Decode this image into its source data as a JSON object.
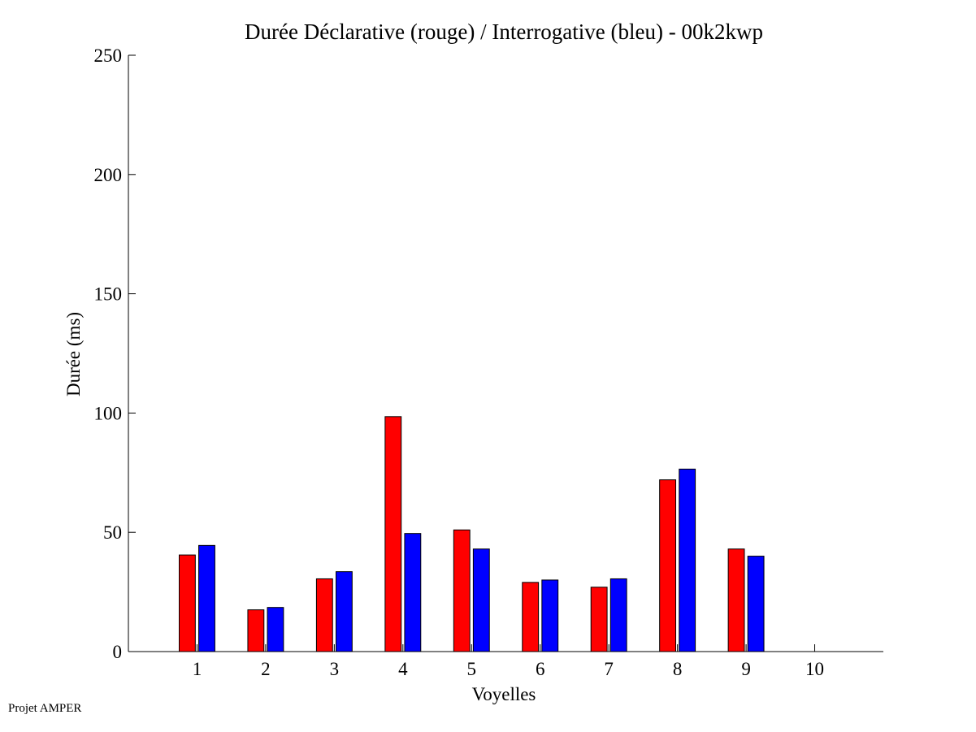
{
  "chart_data": {
    "type": "bar",
    "title": "Durée Déclarative (rouge) / Interrogative (bleu) - 00k2kwp",
    "xlabel": "Voyelles",
    "ylabel": "Durée (ms)",
    "categories": [
      "1",
      "2",
      "3",
      "4",
      "5",
      "6",
      "7",
      "8",
      "9",
      "10"
    ],
    "ylim": [
      0,
      250
    ],
    "yticks": [
      "0",
      "50",
      "100",
      "150",
      "200",
      "250"
    ],
    "xlim": [
      0,
      11
    ],
    "grid": false,
    "series": [
      {
        "color": "#ff0000",
        "values": [
          40.5,
          17.5,
          30.5,
          98.5,
          51,
          29,
          27,
          72,
          43,
          null
        ]
      },
      {
        "color": "#0000ff",
        "values": [
          44.5,
          18.5,
          33.5,
          49.5,
          43,
          30,
          30.5,
          76.5,
          40,
          null
        ]
      }
    ]
  },
  "footer": {
    "text": "Projet AMPER"
  }
}
